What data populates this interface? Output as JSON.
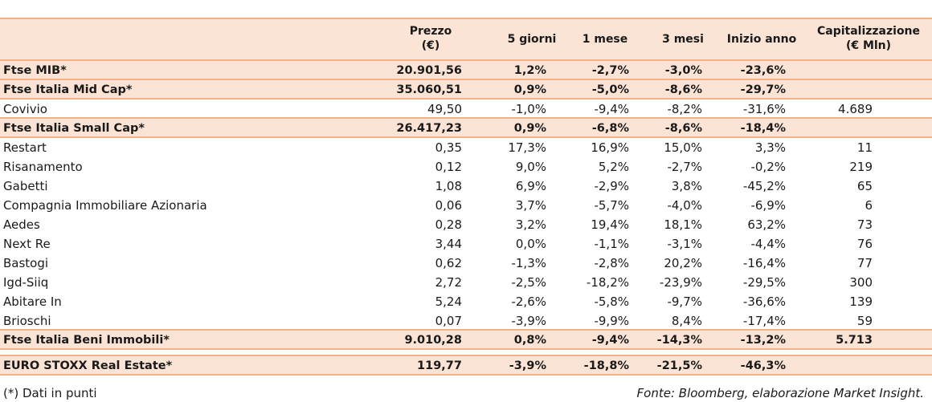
{
  "headers": {
    "prezzo": "Prezzo",
    "prezzo_unit": "(€)",
    "g5": "5 giorni",
    "m1": "1 mese",
    "m3": "3 mesi",
    "ia": "Inizio anno",
    "cap": "Capitalizzazione",
    "cap_unit": "(€ Mln)"
  },
  "rows": [
    {
      "name": "Ftse MIB*",
      "prezzo": "20.901,56",
      "g5": "1,2%",
      "m1": "-2,7%",
      "m3": "-3,0%",
      "ia": "-23,6%",
      "cap": "",
      "style": "sum"
    },
    {
      "name": "Ftse Italia Mid Cap*",
      "prezzo": "35.060,51",
      "g5": "0,9%",
      "m1": "-5,0%",
      "m3": "-8,6%",
      "ia": "-29,7%",
      "cap": "",
      "style": "sum"
    },
    {
      "name": "Covivio",
      "prezzo": "49,50",
      "g5": "-1,0%",
      "m1": "-9,4%",
      "m3": "-8,2%",
      "ia": "-31,6%",
      "cap": "4.689",
      "style": "plain-border"
    },
    {
      "name": "Ftse Italia Small Cap*",
      "prezzo": "26.417,23",
      "g5": "0,9%",
      "m1": "-6,8%",
      "m3": "-8,6%",
      "ia": "-18,4%",
      "cap": "",
      "style": "sum"
    },
    {
      "name": "Restart",
      "prezzo": "0,35",
      "g5": "17,3%",
      "m1": "16,9%",
      "m3": "15,0%",
      "ia": "3,3%",
      "cap": "11",
      "style": "plain"
    },
    {
      "name": "Risanamento",
      "prezzo": "0,12",
      "g5": "9,0%",
      "m1": "5,2%",
      "m3": "-2,7%",
      "ia": "-0,2%",
      "cap": "219",
      "style": "plain"
    },
    {
      "name": "Gabetti",
      "prezzo": "1,08",
      "g5": "6,9%",
      "m1": "-2,9%",
      "m3": "3,8%",
      "ia": "-45,2%",
      "cap": "65",
      "style": "plain"
    },
    {
      "name": "Compagnia Immobiliare Azionaria",
      "prezzo": "0,06",
      "g5": "3,7%",
      "m1": "-5,7%",
      "m3": "-4,0%",
      "ia": "-6,9%",
      "cap": "6",
      "style": "plain"
    },
    {
      "name": "Aedes",
      "prezzo": "0,28",
      "g5": "3,2%",
      "m1": "19,4%",
      "m3": "18,1%",
      "ia": "63,2%",
      "cap": "73",
      "style": "plain"
    },
    {
      "name": "Next Re",
      "prezzo": "3,44",
      "g5": "0,0%",
      "m1": "-1,1%",
      "m3": "-3,1%",
      "ia": "-4,4%",
      "cap": "76",
      "style": "plain"
    },
    {
      "name": "Bastogi",
      "prezzo": "0,62",
      "g5": "-1,3%",
      "m1": "-2,8%",
      "m3": "20,2%",
      "ia": "-16,4%",
      "cap": "77",
      "style": "plain"
    },
    {
      "name": "Igd-Siiq",
      "prezzo": "2,72",
      "g5": "-2,5%",
      "m1": "-18,2%",
      "m3": "-23,9%",
      "ia": "-29,5%",
      "cap": "300",
      "style": "plain"
    },
    {
      "name": "Abitare In",
      "prezzo": "5,24",
      "g5": "-2,6%",
      "m1": "-5,8%",
      "m3": "-9,7%",
      "ia": "-36,6%",
      "cap": "139",
      "style": "plain"
    },
    {
      "name": "Brioschi",
      "prezzo": "0,07",
      "g5": "-3,9%",
      "m1": "-9,9%",
      "m3": "8,4%",
      "ia": "-17,4%",
      "cap": "59",
      "style": "plain-border"
    },
    {
      "name": "Ftse Italia Beni Immobili*",
      "prezzo": "9.010,28",
      "g5": "0,8%",
      "m1": "-9,4%",
      "m3": "-14,3%",
      "ia": "-13,2%",
      "cap": "5.713",
      "style": "sum"
    },
    {
      "name": "EURO STOXX Real Estate*",
      "prezzo": "119,77",
      "g5": "-3,9%",
      "m1": "-18,8%",
      "m3": "-21,5%",
      "ia": "-46,3%",
      "cap": "",
      "style": "sum"
    }
  ],
  "footer": {
    "note": "(*) Dati in punti",
    "source": "Fonte: Bloomberg, elaborazione Market Insight."
  }
}
